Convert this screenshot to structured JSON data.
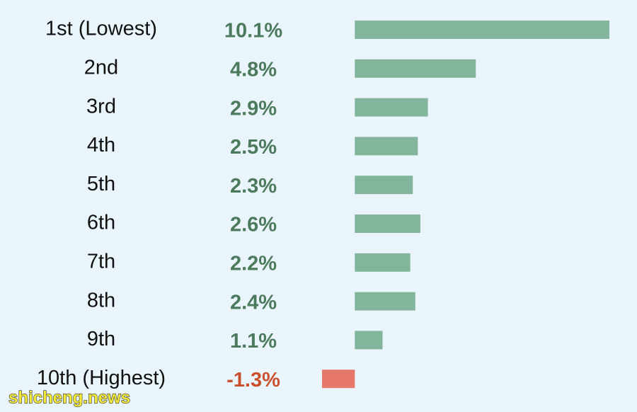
{
  "chart_data": {
    "type": "bar",
    "orientation": "horizontal",
    "categories": [
      "1st (Lowest)",
      "2nd",
      "3rd",
      "4th",
      "5th",
      "6th",
      "7th",
      "8th",
      "9th",
      "10th (Highest)"
    ],
    "values": [
      10.1,
      4.8,
      2.9,
      2.5,
      2.3,
      2.6,
      2.2,
      2.4,
      1.1,
      -1.3
    ],
    "value_labels": [
      "10.1%",
      "4.8%",
      "2.9%",
      "2.5%",
      "2.3%",
      "2.6%",
      "2.2%",
      "2.4%",
      "1.1%",
      "-1.3%"
    ],
    "color": "#82b59b",
    "negative_color": "#e5786a",
    "label_color": "#4b7a5c",
    "negative_label_color": "#c8502c"
  },
  "watermark": "shicheng.news"
}
